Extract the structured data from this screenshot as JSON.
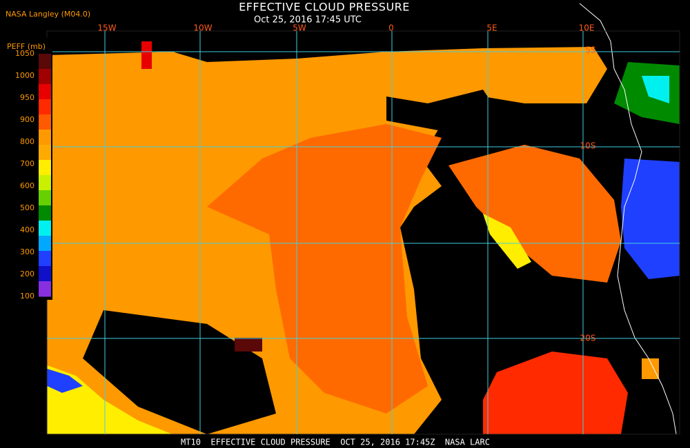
{
  "header": {
    "title": "EFFECTIVE CLOUD PRESSURE",
    "subtitle": "Oct 25, 2016 17:45 UTC",
    "source": "NASA Langley (M04.0)"
  },
  "colorbar": {
    "title": "PEFF (mb)",
    "labels": [
      "1050",
      "1000",
      "950",
      "900",
      "800",
      "700",
      "600",
      "500",
      "400",
      "300",
      "200",
      "100"
    ],
    "colors": [
      "#5a0808",
      "#a00000",
      "#e80000",
      "#ff2a00",
      "#ff5a00",
      "#ff9900",
      "#ffaa00",
      "#ffee00",
      "#c8f000",
      "#66d000",
      "#008a00",
      "#00f0f0",
      "#00a8ff",
      "#2040ff",
      "#1010c8",
      "#8830e0"
    ]
  },
  "map": {
    "lon_labels": [
      "15W",
      "10W",
      "5W",
      "0",
      "5E",
      "10E"
    ],
    "lat_labels": [
      "5S",
      "10S",
      "20S"
    ]
  },
  "footer": {
    "text": "MT10  EFFECTIVE CLOUD PRESSURE  OCT 25, 2016 17:45Z  NASA LARC"
  }
}
